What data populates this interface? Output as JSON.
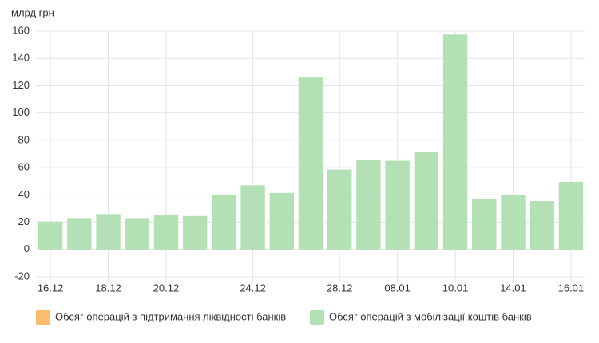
{
  "chart_data": {
    "type": "bar",
    "y_label": "млрд грн",
    "categories": [
      "16.12",
      null,
      "18.12",
      null,
      "20.12",
      null,
      null,
      "24.12",
      null,
      null,
      "28.12",
      null,
      "08.01",
      null,
      "10.01",
      null,
      "14.01",
      null,
      "16.01"
    ],
    "series": [
      {
        "name": "Обсяг операцій з підтримання ліквідності банків",
        "color": "#f9bd6b",
        "values": [
          null,
          null,
          null,
          null,
          null,
          null,
          null,
          null,
          null,
          null,
          null,
          null,
          null,
          null,
          null,
          null,
          null,
          null,
          null
        ]
      },
      {
        "name": "Обсяг операцій з мобілізації коштів банків",
        "color": "#b4e0b6",
        "values": [
          20.5,
          23,
          26,
          23,
          25,
          24.5,
          40,
          47,
          41.5,
          126,
          58.5,
          65.5,
          65,
          71.5,
          157.5,
          37,
          40,
          35.5,
          49.5
        ]
      }
    ],
    "ylim": [
      -20,
      160
    ],
    "yticks": [
      -20,
      0,
      20,
      40,
      60,
      80,
      100,
      120,
      140,
      160
    ],
    "grid": true
  }
}
